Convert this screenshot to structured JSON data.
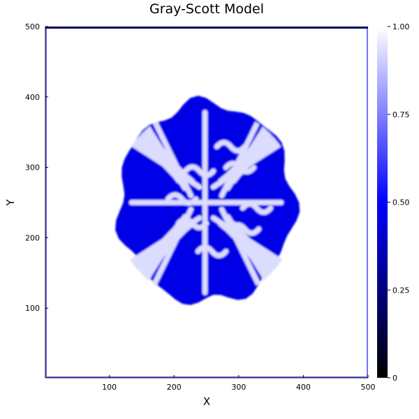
{
  "chart_data": {
    "type": "heatmap",
    "title": "Gray-Scott Model",
    "xlabel": "X",
    "ylabel": "Y",
    "xlim": [
      1,
      500
    ],
    "ylim": [
      1,
      500
    ],
    "x_ticks": [
      100,
      200,
      300,
      400,
      500
    ],
    "y_ticks": [
      100,
      200,
      300,
      400,
      500
    ],
    "colorbar": {
      "range": [
        0,
        1
      ],
      "ticks": [
        "0",
        "0.25",
        "0.50",
        "0.75",
        "1.00"
      ],
      "tick_values": [
        0,
        0.25,
        0.5,
        0.75,
        1.0
      ],
      "colormap": [
        "#000000",
        "#0000ff",
        "#ffffff"
      ]
    },
    "field": {
      "background_value": 1.0,
      "pattern_value": 0.5,
      "pattern_center": [
        250,
        250
      ],
      "pattern_radius_x": 136,
      "pattern_radius_y": 142,
      "boundary_value": 0.3
    }
  }
}
